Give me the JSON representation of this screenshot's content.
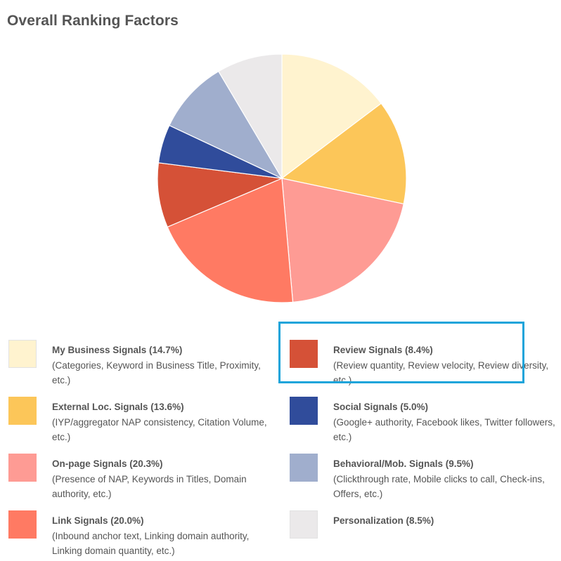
{
  "chart_data": {
    "type": "pie",
    "title": "Overall Ranking Factors",
    "series": [
      {
        "name": "My Business Signals (14.7%)",
        "description": "(Categories, Keyword in Business Title, Proximity, etc.)",
        "value": 14.7,
        "color": "#fff3cf"
      },
      {
        "name": "External Loc. Signals (13.6%)",
        "description": "(IYP/aggregator NAP consistency, Citation Volume, etc.)",
        "value": 13.6,
        "color": "#fcc659"
      },
      {
        "name": "On-page Signals (20.3%)",
        "description": "(Presence of NAP, Keywords in Titles, Domain authority, etc.)",
        "value": 20.3,
        "color": "#fe9b94"
      },
      {
        "name": "Link Signals (20.0%)",
        "description": "(Inbound anchor text, Linking domain authority, Linking domain quantity, etc.)",
        "value": 20.0,
        "color": "#ff7a63"
      },
      {
        "name": "Review Signals (8.4%)",
        "description": "(Review quantity, Review velocity, Review diversity, etc.)",
        "value": 8.4,
        "color": "#d55137"
      },
      {
        "name": "Social Signals (5.0%)",
        "description": "(Google+ authority, Facebook likes, Twitter followers, etc.)",
        "value": 5.0,
        "color": "#304c9b"
      },
      {
        "name": "Behavioral/Mob. Signals (9.5%)",
        "description": "(Clickthrough rate, Mobile clicks to call, Check-ins, Offers, etc.)",
        "value": 9.5,
        "color": "#a0aecd"
      },
      {
        "name": "Personalization (8.5%)",
        "description": "",
        "value": 8.5,
        "color": "#ebe9ea"
      }
    ],
    "highlighted": "Review Signals (8.4%)",
    "highlight_color": "#1ba4da"
  }
}
